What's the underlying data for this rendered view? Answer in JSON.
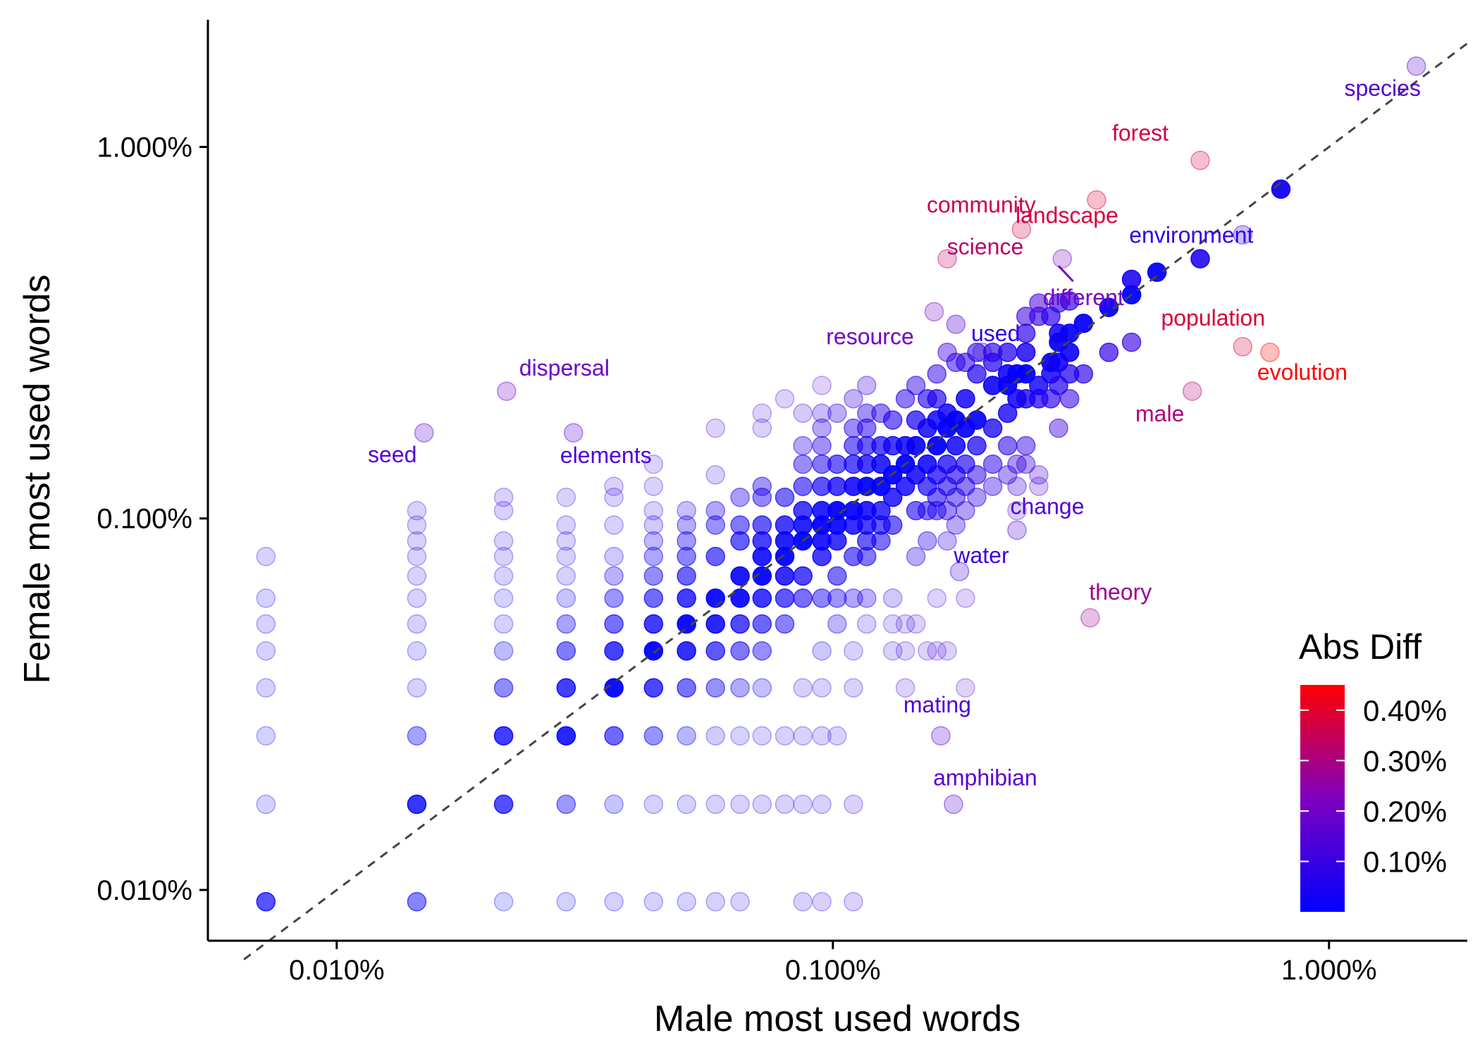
{
  "chart_data": {
    "type": "scatter",
    "xlabel": "Male most used words",
    "ylabel": "Female most used words",
    "x_scale": "log",
    "y_scale": "log",
    "xlim": [
      0.0055,
      1.9
    ],
    "ylim": [
      0.0073,
      2.2
    ],
    "x_ticks": [
      {
        "value": 0.01,
        "label": "0.010%"
      },
      {
        "value": 0.1,
        "label": "0.100%"
      },
      {
        "value": 1.0,
        "label": "1.000%"
      }
    ],
    "y_ticks": [
      {
        "value": 0.01,
        "label": "0.010%"
      },
      {
        "value": 0.1,
        "label": "0.100%"
      },
      {
        "value": 1.0,
        "label": "1.000%"
      }
    ],
    "reference_line": "y = x",
    "grid": false,
    "color_scale": {
      "title": "Abs Diff",
      "range": [
        0.0,
        0.45
      ],
      "low_color": "#0000ff",
      "high_color": "#ff0000",
      "ticks": [
        {
          "value": 0.1,
          "label": "0.10%"
        },
        {
          "value": 0.2,
          "label": "0.20%"
        },
        {
          "value": 0.3,
          "label": "0.30%"
        },
        {
          "value": 0.4,
          "label": "0.40%"
        }
      ],
      "legend_position": "bottom-right"
    },
    "labeled_points": [
      {
        "word": "species",
        "x": 1.5,
        "y": 1.65
      },
      {
        "word": "forest",
        "x": 0.55,
        "y": 0.92
      },
      {
        "word": "landscape",
        "x": 0.34,
        "y": 0.72
      },
      {
        "word": "community",
        "x": 0.24,
        "y": 0.6
      },
      {
        "word": "science",
        "x": 0.17,
        "y": 0.5
      },
      {
        "word": "environment",
        "x": 0.67,
        "y": 0.58
      },
      {
        "word": "different",
        "x": 0.29,
        "y": 0.5
      },
      {
        "word": "resource",
        "x": 0.16,
        "y": 0.36
      },
      {
        "word": "population",
        "x": 0.67,
        "y": 0.29
      },
      {
        "word": "evolution",
        "x": 0.76,
        "y": 0.28
      },
      {
        "word": "used",
        "x": 0.2,
        "y": 0.28
      },
      {
        "word": "male",
        "x": 0.53,
        "y": 0.22
      },
      {
        "word": "dispersal",
        "x": 0.022,
        "y": 0.22
      },
      {
        "word": "seed",
        "x": 0.015,
        "y": 0.17
      },
      {
        "word": "elements",
        "x": 0.03,
        "y": 0.17
      },
      {
        "word": "change",
        "x": 0.235,
        "y": 0.093
      },
      {
        "word": "water",
        "x": 0.18,
        "y": 0.072
      },
      {
        "word": "theory",
        "x": 0.33,
        "y": 0.054
      },
      {
        "word": "mating",
        "x": 0.165,
        "y": 0.026
      },
      {
        "word": "amphibian",
        "x": 0.175,
        "y": 0.017
      }
    ],
    "points": [
      [
        0.0072,
        0.0093
      ],
      [
        0.0072,
        0.017
      ],
      [
        0.0072,
        0.026
      ],
      [
        0.0072,
        0.035
      ],
      [
        0.0072,
        0.044
      ],
      [
        0.0072,
        0.052
      ],
      [
        0.0072,
        0.061
      ],
      [
        0.0072,
        0.079
      ],
      [
        0.0145,
        0.0093
      ],
      [
        0.0145,
        0.017
      ],
      [
        0.0145,
        0.026
      ],
      [
        0.0145,
        0.035
      ],
      [
        0.0145,
        0.044
      ],
      [
        0.0145,
        0.052
      ],
      [
        0.0145,
        0.061
      ],
      [
        0.0145,
        0.07
      ],
      [
        0.0145,
        0.079
      ],
      [
        0.0145,
        0.087
      ],
      [
        0.0145,
        0.096
      ],
      [
        0.0145,
        0.105
      ],
      [
        0.0217,
        0.0093
      ],
      [
        0.0217,
        0.017
      ],
      [
        0.0217,
        0.026
      ],
      [
        0.0217,
        0.035
      ],
      [
        0.0217,
        0.044
      ],
      [
        0.0217,
        0.052
      ],
      [
        0.0217,
        0.061
      ],
      [
        0.0217,
        0.07
      ],
      [
        0.0217,
        0.079
      ],
      [
        0.0217,
        0.087
      ],
      [
        0.0217,
        0.105
      ],
      [
        0.0217,
        0.114
      ],
      [
        0.029,
        0.0093
      ],
      [
        0.029,
        0.017
      ],
      [
        0.029,
        0.026
      ],
      [
        0.029,
        0.035
      ],
      [
        0.029,
        0.044
      ],
      [
        0.029,
        0.052
      ],
      [
        0.029,
        0.061
      ],
      [
        0.029,
        0.07
      ],
      [
        0.029,
        0.079
      ],
      [
        0.029,
        0.087
      ],
      [
        0.029,
        0.096
      ],
      [
        0.029,
        0.114
      ],
      [
        0.0362,
        0.0093
      ],
      [
        0.0362,
        0.017
      ],
      [
        0.0362,
        0.026
      ],
      [
        0.0362,
        0.035
      ],
      [
        0.0362,
        0.044
      ],
      [
        0.0362,
        0.052
      ],
      [
        0.0362,
        0.061
      ],
      [
        0.0362,
        0.07
      ],
      [
        0.0362,
        0.079
      ],
      [
        0.0362,
        0.096
      ],
      [
        0.0362,
        0.114
      ],
      [
        0.0362,
        0.122
      ],
      [
        0.0435,
        0.0093
      ],
      [
        0.0435,
        0.017
      ],
      [
        0.0435,
        0.026
      ],
      [
        0.0435,
        0.035
      ],
      [
        0.0435,
        0.044
      ],
      [
        0.0435,
        0.052
      ],
      [
        0.0435,
        0.061
      ],
      [
        0.0435,
        0.07
      ],
      [
        0.0435,
        0.079
      ],
      [
        0.0435,
        0.087
      ],
      [
        0.0435,
        0.096
      ],
      [
        0.0435,
        0.105
      ],
      [
        0.0435,
        0.122
      ],
      [
        0.0435,
        0.14
      ],
      [
        0.0507,
        0.0093
      ],
      [
        0.0507,
        0.017
      ],
      [
        0.0507,
        0.026
      ],
      [
        0.0507,
        0.035
      ],
      [
        0.0507,
        0.044
      ],
      [
        0.0507,
        0.052
      ],
      [
        0.0507,
        0.061
      ],
      [
        0.0507,
        0.07
      ],
      [
        0.0507,
        0.079
      ],
      [
        0.0507,
        0.087
      ],
      [
        0.0507,
        0.096
      ],
      [
        0.0507,
        0.105
      ],
      [
        0.058,
        0.0093
      ],
      [
        0.058,
        0.017
      ],
      [
        0.058,
        0.026
      ],
      [
        0.058,
        0.035
      ],
      [
        0.058,
        0.044
      ],
      [
        0.058,
        0.052
      ],
      [
        0.058,
        0.061
      ],
      [
        0.058,
        0.079
      ],
      [
        0.058,
        0.096
      ],
      [
        0.058,
        0.105
      ],
      [
        0.058,
        0.131
      ],
      [
        0.058,
        0.175
      ],
      [
        0.065,
        0.0093
      ],
      [
        0.065,
        0.017
      ],
      [
        0.065,
        0.026
      ],
      [
        0.065,
        0.035
      ],
      [
        0.065,
        0.044
      ],
      [
        0.065,
        0.052
      ],
      [
        0.065,
        0.061
      ],
      [
        0.065,
        0.07
      ],
      [
        0.065,
        0.087
      ],
      [
        0.065,
        0.096
      ],
      [
        0.065,
        0.114
      ],
      [
        0.072,
        0.017
      ],
      [
        0.072,
        0.026
      ],
      [
        0.072,
        0.035
      ],
      [
        0.072,
        0.044
      ],
      [
        0.072,
        0.052
      ],
      [
        0.072,
        0.061
      ],
      [
        0.072,
        0.07
      ],
      [
        0.072,
        0.079
      ],
      [
        0.072,
        0.087
      ],
      [
        0.072,
        0.096
      ],
      [
        0.072,
        0.114
      ],
      [
        0.072,
        0.122
      ],
      [
        0.072,
        0.175
      ],
      [
        0.072,
        0.192
      ],
      [
        0.08,
        0.017
      ],
      [
        0.08,
        0.026
      ],
      [
        0.08,
        0.052
      ],
      [
        0.08,
        0.061
      ],
      [
        0.08,
        0.07
      ],
      [
        0.08,
        0.079
      ],
      [
        0.08,
        0.087
      ],
      [
        0.08,
        0.096
      ],
      [
        0.08,
        0.114
      ],
      [
        0.08,
        0.21
      ],
      [
        0.087,
        0.0093
      ],
      [
        0.087,
        0.017
      ],
      [
        0.087,
        0.026
      ],
      [
        0.087,
        0.035
      ],
      [
        0.087,
        0.061
      ],
      [
        0.087,
        0.07
      ],
      [
        0.087,
        0.087
      ],
      [
        0.087,
        0.096
      ],
      [
        0.087,
        0.105
      ],
      [
        0.087,
        0.122
      ],
      [
        0.087,
        0.14
      ],
      [
        0.087,
        0.157
      ],
      [
        0.087,
        0.192
      ],
      [
        0.095,
        0.0093
      ],
      [
        0.095,
        0.017
      ],
      [
        0.095,
        0.026
      ],
      [
        0.095,
        0.035
      ],
      [
        0.095,
        0.044
      ],
      [
        0.095,
        0.061
      ],
      [
        0.095,
        0.079
      ],
      [
        0.095,
        0.087
      ],
      [
        0.095,
        0.096
      ],
      [
        0.095,
        0.105
      ],
      [
        0.095,
        0.122
      ],
      [
        0.095,
        0.14
      ],
      [
        0.095,
        0.157
      ],
      [
        0.095,
        0.175
      ],
      [
        0.095,
        0.192
      ],
      [
        0.095,
        0.228
      ],
      [
        0.102,
        0.026
      ],
      [
        0.102,
        0.052
      ],
      [
        0.102,
        0.061
      ],
      [
        0.102,
        0.07
      ],
      [
        0.102,
        0.087
      ],
      [
        0.102,
        0.096
      ],
      [
        0.102,
        0.105
      ],
      [
        0.102,
        0.122
      ],
      [
        0.102,
        0.14
      ],
      [
        0.102,
        0.192
      ],
      [
        0.11,
        0.0093
      ],
      [
        0.11,
        0.017
      ],
      [
        0.11,
        0.035
      ],
      [
        0.11,
        0.044
      ],
      [
        0.11,
        0.061
      ],
      [
        0.11,
        0.079
      ],
      [
        0.11,
        0.096
      ],
      [
        0.11,
        0.105
      ],
      [
        0.11,
        0.122
      ],
      [
        0.11,
        0.14
      ],
      [
        0.11,
        0.157
      ],
      [
        0.11,
        0.175
      ],
      [
        0.11,
        0.21
      ],
      [
        0.117,
        0.052
      ],
      [
        0.117,
        0.061
      ],
      [
        0.117,
        0.079
      ],
      [
        0.117,
        0.087
      ],
      [
        0.117,
        0.096
      ],
      [
        0.117,
        0.105
      ],
      [
        0.117,
        0.122
      ],
      [
        0.117,
        0.14
      ],
      [
        0.117,
        0.157
      ],
      [
        0.117,
        0.175
      ],
      [
        0.117,
        0.192
      ],
      [
        0.117,
        0.228
      ],
      [
        0.125,
        0.087
      ],
      [
        0.125,
        0.096
      ],
      [
        0.125,
        0.105
      ],
      [
        0.125,
        0.122
      ],
      [
        0.125,
        0.14
      ],
      [
        0.125,
        0.157
      ],
      [
        0.125,
        0.192
      ],
      [
        0.132,
        0.044
      ],
      [
        0.132,
        0.052
      ],
      [
        0.132,
        0.061
      ],
      [
        0.132,
        0.096
      ],
      [
        0.132,
        0.114
      ],
      [
        0.132,
        0.131
      ],
      [
        0.132,
        0.157
      ],
      [
        0.132,
        0.184
      ],
      [
        0.14,
        0.035
      ],
      [
        0.14,
        0.044
      ],
      [
        0.14,
        0.052
      ],
      [
        0.14,
        0.122
      ],
      [
        0.14,
        0.14
      ],
      [
        0.14,
        0.157
      ],
      [
        0.14,
        0.21
      ],
      [
        0.147,
        0.052
      ],
      [
        0.147,
        0.079
      ],
      [
        0.147,
        0.105
      ],
      [
        0.147,
        0.131
      ],
      [
        0.147,
        0.157
      ],
      [
        0.147,
        0.184
      ],
      [
        0.147,
        0.228
      ],
      [
        0.155,
        0.044
      ],
      [
        0.155,
        0.087
      ],
      [
        0.155,
        0.105
      ],
      [
        0.155,
        0.122
      ],
      [
        0.155,
        0.14
      ],
      [
        0.155,
        0.175
      ],
      [
        0.155,
        0.21
      ],
      [
        0.162,
        0.044
      ],
      [
        0.162,
        0.061
      ],
      [
        0.162,
        0.105
      ],
      [
        0.162,
        0.114
      ],
      [
        0.162,
        0.131
      ],
      [
        0.162,
        0.157
      ],
      [
        0.162,
        0.184
      ],
      [
        0.162,
        0.21
      ],
      [
        0.162,
        0.245
      ],
      [
        0.17,
        0.044
      ],
      [
        0.17,
        0.087
      ],
      [
        0.17,
        0.105
      ],
      [
        0.17,
        0.122
      ],
      [
        0.17,
        0.14
      ],
      [
        0.17,
        0.175
      ],
      [
        0.17,
        0.192
      ],
      [
        0.17,
        0.28
      ],
      [
        0.177,
        0.096
      ],
      [
        0.177,
        0.114
      ],
      [
        0.177,
        0.131
      ],
      [
        0.177,
        0.157
      ],
      [
        0.177,
        0.184
      ],
      [
        0.177,
        0.263
      ],
      [
        0.177,
        0.333
      ],
      [
        0.185,
        0.035
      ],
      [
        0.185,
        0.061
      ],
      [
        0.185,
        0.105
      ],
      [
        0.185,
        0.122
      ],
      [
        0.185,
        0.14
      ],
      [
        0.185,
        0.175
      ],
      [
        0.185,
        0.21
      ],
      [
        0.185,
        0.263
      ],
      [
        0.195,
        0.114
      ],
      [
        0.195,
        0.131
      ],
      [
        0.195,
        0.157
      ],
      [
        0.195,
        0.184
      ],
      [
        0.195,
        0.245
      ],
      [
        0.195,
        0.28
      ],
      [
        0.21,
        0.122
      ],
      [
        0.21,
        0.14
      ],
      [
        0.21,
        0.175
      ],
      [
        0.21,
        0.228
      ],
      [
        0.21,
        0.263
      ],
      [
        0.21,
        0.28
      ],
      [
        0.225,
        0.131
      ],
      [
        0.225,
        0.157
      ],
      [
        0.225,
        0.192
      ],
      [
        0.225,
        0.228
      ],
      [
        0.225,
        0.245
      ],
      [
        0.225,
        0.28
      ],
      [
        0.235,
        0.105
      ],
      [
        0.235,
        0.122
      ],
      [
        0.235,
        0.14
      ],
      [
        0.235,
        0.21
      ],
      [
        0.235,
        0.245
      ],
      [
        0.245,
        0.14
      ],
      [
        0.245,
        0.157
      ],
      [
        0.245,
        0.21
      ],
      [
        0.245,
        0.245
      ],
      [
        0.245,
        0.28
      ],
      [
        0.245,
        0.315
      ],
      [
        0.245,
        0.35
      ],
      [
        0.26,
        0.122
      ],
      [
        0.26,
        0.131
      ],
      [
        0.26,
        0.21
      ],
      [
        0.26,
        0.228
      ],
      [
        0.26,
        0.35
      ],
      [
        0.26,
        0.38
      ],
      [
        0.275,
        0.21
      ],
      [
        0.275,
        0.245
      ],
      [
        0.275,
        0.263
      ],
      [
        0.275,
        0.35
      ],
      [
        0.285,
        0.175
      ],
      [
        0.285,
        0.228
      ],
      [
        0.285,
        0.263
      ],
      [
        0.285,
        0.298
      ],
      [
        0.285,
        0.315
      ],
      [
        0.285,
        0.38
      ],
      [
        0.3,
        0.21
      ],
      [
        0.3,
        0.245
      ],
      [
        0.3,
        0.28
      ],
      [
        0.3,
        0.315
      ],
      [
        0.3,
        0.385
      ],
      [
        0.32,
        0.245
      ],
      [
        0.32,
        0.335
      ],
      [
        0.36,
        0.28
      ],
      [
        0.36,
        0.37
      ],
      [
        0.4,
        0.4
      ],
      [
        0.4,
        0.44
      ],
      [
        0.4,
        0.298
      ],
      [
        0.45,
        0.46
      ],
      [
        0.55,
        0.5
      ],
      [
        0.8,
        0.77
      ]
    ]
  }
}
